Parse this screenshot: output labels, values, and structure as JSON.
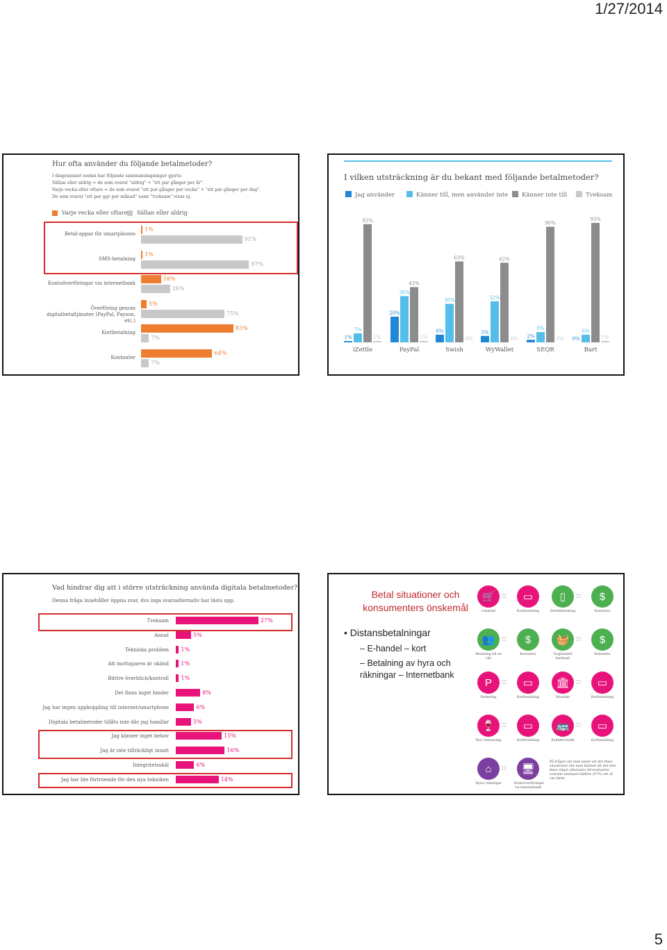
{
  "header": {
    "date": "1/27/2014",
    "page_number": "5"
  },
  "slide1": {
    "title": "Hur ofta använder du följande betalmetoder?",
    "notes": [
      "I diagrammet nedan har följande sammanslagningar gjorts:",
      "Sällan eller aldrig = de som svarat \"aldrig\" + \"ett par gånger per år\".",
      "Varje vecka eller oftare = de som svarat \"ett par gånger per vecka\" + \"ett par gånger per dag\".",
      "De som svarat \"ett par ggr per månad\" samt \"tveksam\" visas ej."
    ],
    "legend": [
      {
        "label": "Varje vecka eller oftare",
        "color": "#ee7d31"
      },
      {
        "label": "Sällan eller aldrig",
        "color": "#c8c8c8"
      }
    ],
    "rows": [
      {
        "label": "Betal-appar för smartphones",
        "weekly": 1,
        "rarely": 91,
        "weekly_label": "1%",
        "rarely_label": "91%"
      },
      {
        "label": "SMS-betalning",
        "weekly": 1,
        "rarely": 97,
        "weekly_label": "1%",
        "rarely_label": "97%"
      },
      {
        "label": "Kontoöverföringar via internetbank",
        "weekly": 18,
        "rarely": 26,
        "weekly_label": "18%",
        "rarely_label": "26%"
      },
      {
        "label": "Överföring genom digitalbetaltjänster (PayPal, Payson, etc.)",
        "weekly": 5,
        "rarely": 75,
        "weekly_label": "5%",
        "rarely_label": "75%"
      },
      {
        "label": "Kortbetalning",
        "weekly": 83,
        "rarely": 7,
        "weekly_label": "83%",
        "rarely_label": "7%"
      },
      {
        "label": "Kontanter",
        "weekly": 64,
        "rarely": 7,
        "weekly_label": "64%",
        "rarely_label": "7%"
      }
    ]
  },
  "slide2": {
    "title": "I vilken utsträckning är du bekant med följande betalmetoder?",
    "legend": [
      {
        "label": "Jag använder",
        "color": "#1f87d3"
      },
      {
        "label": "Känner till, men använder inte",
        "color": "#55bde9"
      },
      {
        "label": "Känner inte till",
        "color": "#8c8c8c"
      },
      {
        "label": "Tveksam",
        "color": "#c8c8c8"
      }
    ],
    "groups": [
      {
        "name": "iZettle",
        "values": [
          1,
          7,
          92,
          1
        ]
      },
      {
        "name": "PayPal",
        "values": [
          20,
          36,
          43,
          1
        ]
      },
      {
        "name": "Swish",
        "values": [
          6,
          30,
          63,
          0
        ]
      },
      {
        "name": "WyWallet",
        "values": [
          5,
          32,
          62,
          0
        ]
      },
      {
        "name": "SEQR",
        "values": [
          2,
          8,
          90,
          0
        ]
      },
      {
        "name": "Bart",
        "values": [
          0,
          6,
          93,
          1
        ]
      }
    ]
  },
  "slide3": {
    "title": "Vad hindrar dig att i större utsträckning använda digitala betalmetoder?",
    "subtitle": "Denna fråga innehåller öppna svar, dvs inga svarsalternativ har lästs upp.",
    "color": "#e8137a",
    "rows": [
      {
        "label": "Tveksam",
        "value": 27,
        "value_label": "27%"
      },
      {
        "label": "Annat",
        "value": 5,
        "value_label": "5%"
      },
      {
        "label": "Tekniska problem",
        "value": 1,
        "value_label": "1%"
      },
      {
        "label": "Att mottagaren är okänd",
        "value": 1,
        "value_label": "1%"
      },
      {
        "label": "Bättre överblick/kontroll",
        "value": 1,
        "value_label": "1%"
      },
      {
        "label": "Det finns inget hinder",
        "value": 8,
        "value_label": "8%"
      },
      {
        "label": "Jag har ingen uppkoppling till internet/smartphone",
        "value": 6,
        "value_label": "6%"
      },
      {
        "label": "Digitala betalmetoder tillåts inte där jag handlar",
        "value": 5,
        "value_label": "5%"
      },
      {
        "label": "Jag känner inget behov",
        "value": 15,
        "value_label": "15%"
      },
      {
        "label": "Jag är inte tillräckligt insatt",
        "value": 16,
        "value_label": "16%"
      },
      {
        "label": "Integritetsskäl",
        "value": 6,
        "value_label": "6%"
      },
      {
        "label": "Jag har lite förtroende för den nya tekniken",
        "value": 14,
        "value_label": "14%"
      }
    ]
  },
  "slide4": {
    "title": "Betal situationer och konsumenters önskemål",
    "bullet": "Distansbetalningar",
    "subbullets": [
      "E-handel – kort",
      "Betalning av hyra och räkningar – Internetbank"
    ],
    "icons": [
      {
        "label": "e-handel",
        "icon": "cart-icon",
        "color": "#e8137a",
        "glyph": "🛒"
      },
      {
        "label": "Kortbetalning",
        "icon": "card-icon",
        "color": "#e8137a",
        "glyph": "▭"
      },
      {
        "label": "Direktbetalning",
        "icon": "door-icon",
        "color": "#4caf50",
        "glyph": "▯"
      },
      {
        "label": "Kontanter",
        "icon": "cash-icon",
        "color": "#4caf50",
        "glyph": "$"
      },
      {
        "label": "Betalning till en vän",
        "icon": "friends-icon",
        "color": "#4caf50",
        "glyph": "👥"
      },
      {
        "label": "Kontanter",
        "icon": "cash-icon",
        "color": "#4caf50",
        "glyph": "$"
      },
      {
        "label": "Torghandel/ marknad",
        "icon": "basket-icon",
        "color": "#4caf50",
        "glyph": "🧺"
      },
      {
        "label": "Kontanter",
        "icon": "cash-icon",
        "color": "#4caf50",
        "glyph": "$"
      },
      {
        "label": "Parkering",
        "icon": "parking-icon",
        "color": "#e8137a",
        "glyph": "P"
      },
      {
        "label": "Kortbetalning",
        "icon": "card-icon",
        "color": "#e8137a",
        "glyph": "▭"
      },
      {
        "label": "Museum",
        "icon": "museum-icon",
        "color": "#e8137a",
        "glyph": "🏛"
      },
      {
        "label": "Kortbetalning",
        "icon": "card-icon",
        "color": "#e8137a",
        "glyph": "▭"
      },
      {
        "label": "Bar/ restaurang",
        "icon": "glass-icon",
        "color": "#e8137a",
        "glyph": "🍷"
      },
      {
        "label": "Kortbetalning",
        "icon": "card-icon",
        "color": "#e8137a",
        "glyph": "▭"
      },
      {
        "label": "Kollektivtrafik",
        "icon": "bus-icon",
        "color": "#e8137a",
        "glyph": "🚌"
      },
      {
        "label": "Kortbetalning",
        "icon": "card-icon",
        "color": "#e8137a",
        "glyph": "▭"
      },
      {
        "label": "Hyra/ räkningar",
        "icon": "house-icon",
        "color": "#7b3fa0",
        "glyph": "⌂"
      },
      {
        "label": "Kontoöverföringar via internetbank",
        "icon": "computer-icon",
        "color": "#7b3fa0",
        "glyph": "🖥"
      }
    ],
    "footnote": "På frågan om man anser att det finns situationer när man känner att det inte finns något alternativ till kontanter svarade närmare hälften (47%) att så var fallet"
  }
}
